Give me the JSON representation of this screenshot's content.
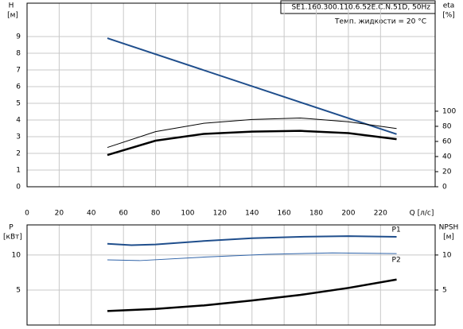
{
  "chart_data": [
    {
      "type": "line",
      "title": "SE1.160.300.110.6.52E.C.N.51D, 50Hz",
      "subtitle": "Темп. жидкости = 20 °C",
      "y_label": "H",
      "y_unit": "[м]",
      "y2_label": "eta",
      "y2_unit": "[%]",
      "x_label": "Q [л/с]",
      "xlim": [
        0,
        254
      ],
      "xticks": [
        0,
        20,
        40,
        60,
        80,
        100,
        120,
        140,
        160,
        180,
        200,
        220
      ],
      "ylim": [
        0,
        11
      ],
      "yticks": [
        0,
        1,
        2,
        3,
        4,
        5,
        6,
        7,
        8,
        9
      ],
      "y2lim": [
        0,
        243
      ],
      "y2ticks": [
        0,
        20,
        40,
        60,
        80,
        100
      ],
      "grid": true,
      "series": [
        {
          "color": "#1f4e8c",
          "width": 2,
          "x": [
            50,
            230
          ],
          "values": [
            8.9,
            3.15
          ]
        },
        {
          "color": "#000000",
          "width": 1,
          "axis": "y2",
          "x": [
            50,
            80,
            110,
            140,
            170,
            200,
            230
          ],
          "values": [
            52,
            73,
            84,
            89,
            91,
            86,
            77
          ]
        },
        {
          "color": "#000000",
          "width": 2.5,
          "axis": "y2",
          "x": [
            50,
            80,
            110,
            140,
            170,
            200,
            230
          ],
          "values": [
            42,
            61,
            70,
            73,
            74,
            71,
            63
          ]
        }
      ]
    },
    {
      "type": "line",
      "y_label": "P",
      "y_unit": "[кВт]",
      "y2_label": "NPSH",
      "y2_unit": "[м]",
      "xlim": [
        0,
        254
      ],
      "xticks": [
        0,
        20,
        40,
        60,
        80,
        100,
        120,
        140,
        160,
        180,
        200,
        220
      ],
      "ylim": [
        0,
        14.3
      ],
      "yticks": [
        5,
        10
      ],
      "y2lim": [
        0,
        14.3
      ],
      "y2ticks": [
        5,
        10
      ],
      "grid": true,
      "series": [
        {
          "name": "P1",
          "color": "#1f4e8c",
          "width": 2,
          "x": [
            50,
            65,
            80,
            110,
            140,
            170,
            200,
            230
          ],
          "values": [
            11.6,
            11.4,
            11.5,
            12.0,
            12.4,
            12.6,
            12.7,
            12.6
          ]
        },
        {
          "name": "P2",
          "color": "#2f63a8",
          "width": 1,
          "x": [
            50,
            70,
            110,
            150,
            190,
            230
          ],
          "values": [
            9.3,
            9.2,
            9.7,
            10.1,
            10.3,
            10.2
          ]
        },
        {
          "color": "#000000",
          "width": 2.5,
          "axis": "y2",
          "x": [
            50,
            80,
            110,
            140,
            170,
            200,
            230
          ],
          "values": [
            2.0,
            2.3,
            2.8,
            3.5,
            4.3,
            5.3,
            6.5
          ]
        }
      ]
    }
  ]
}
